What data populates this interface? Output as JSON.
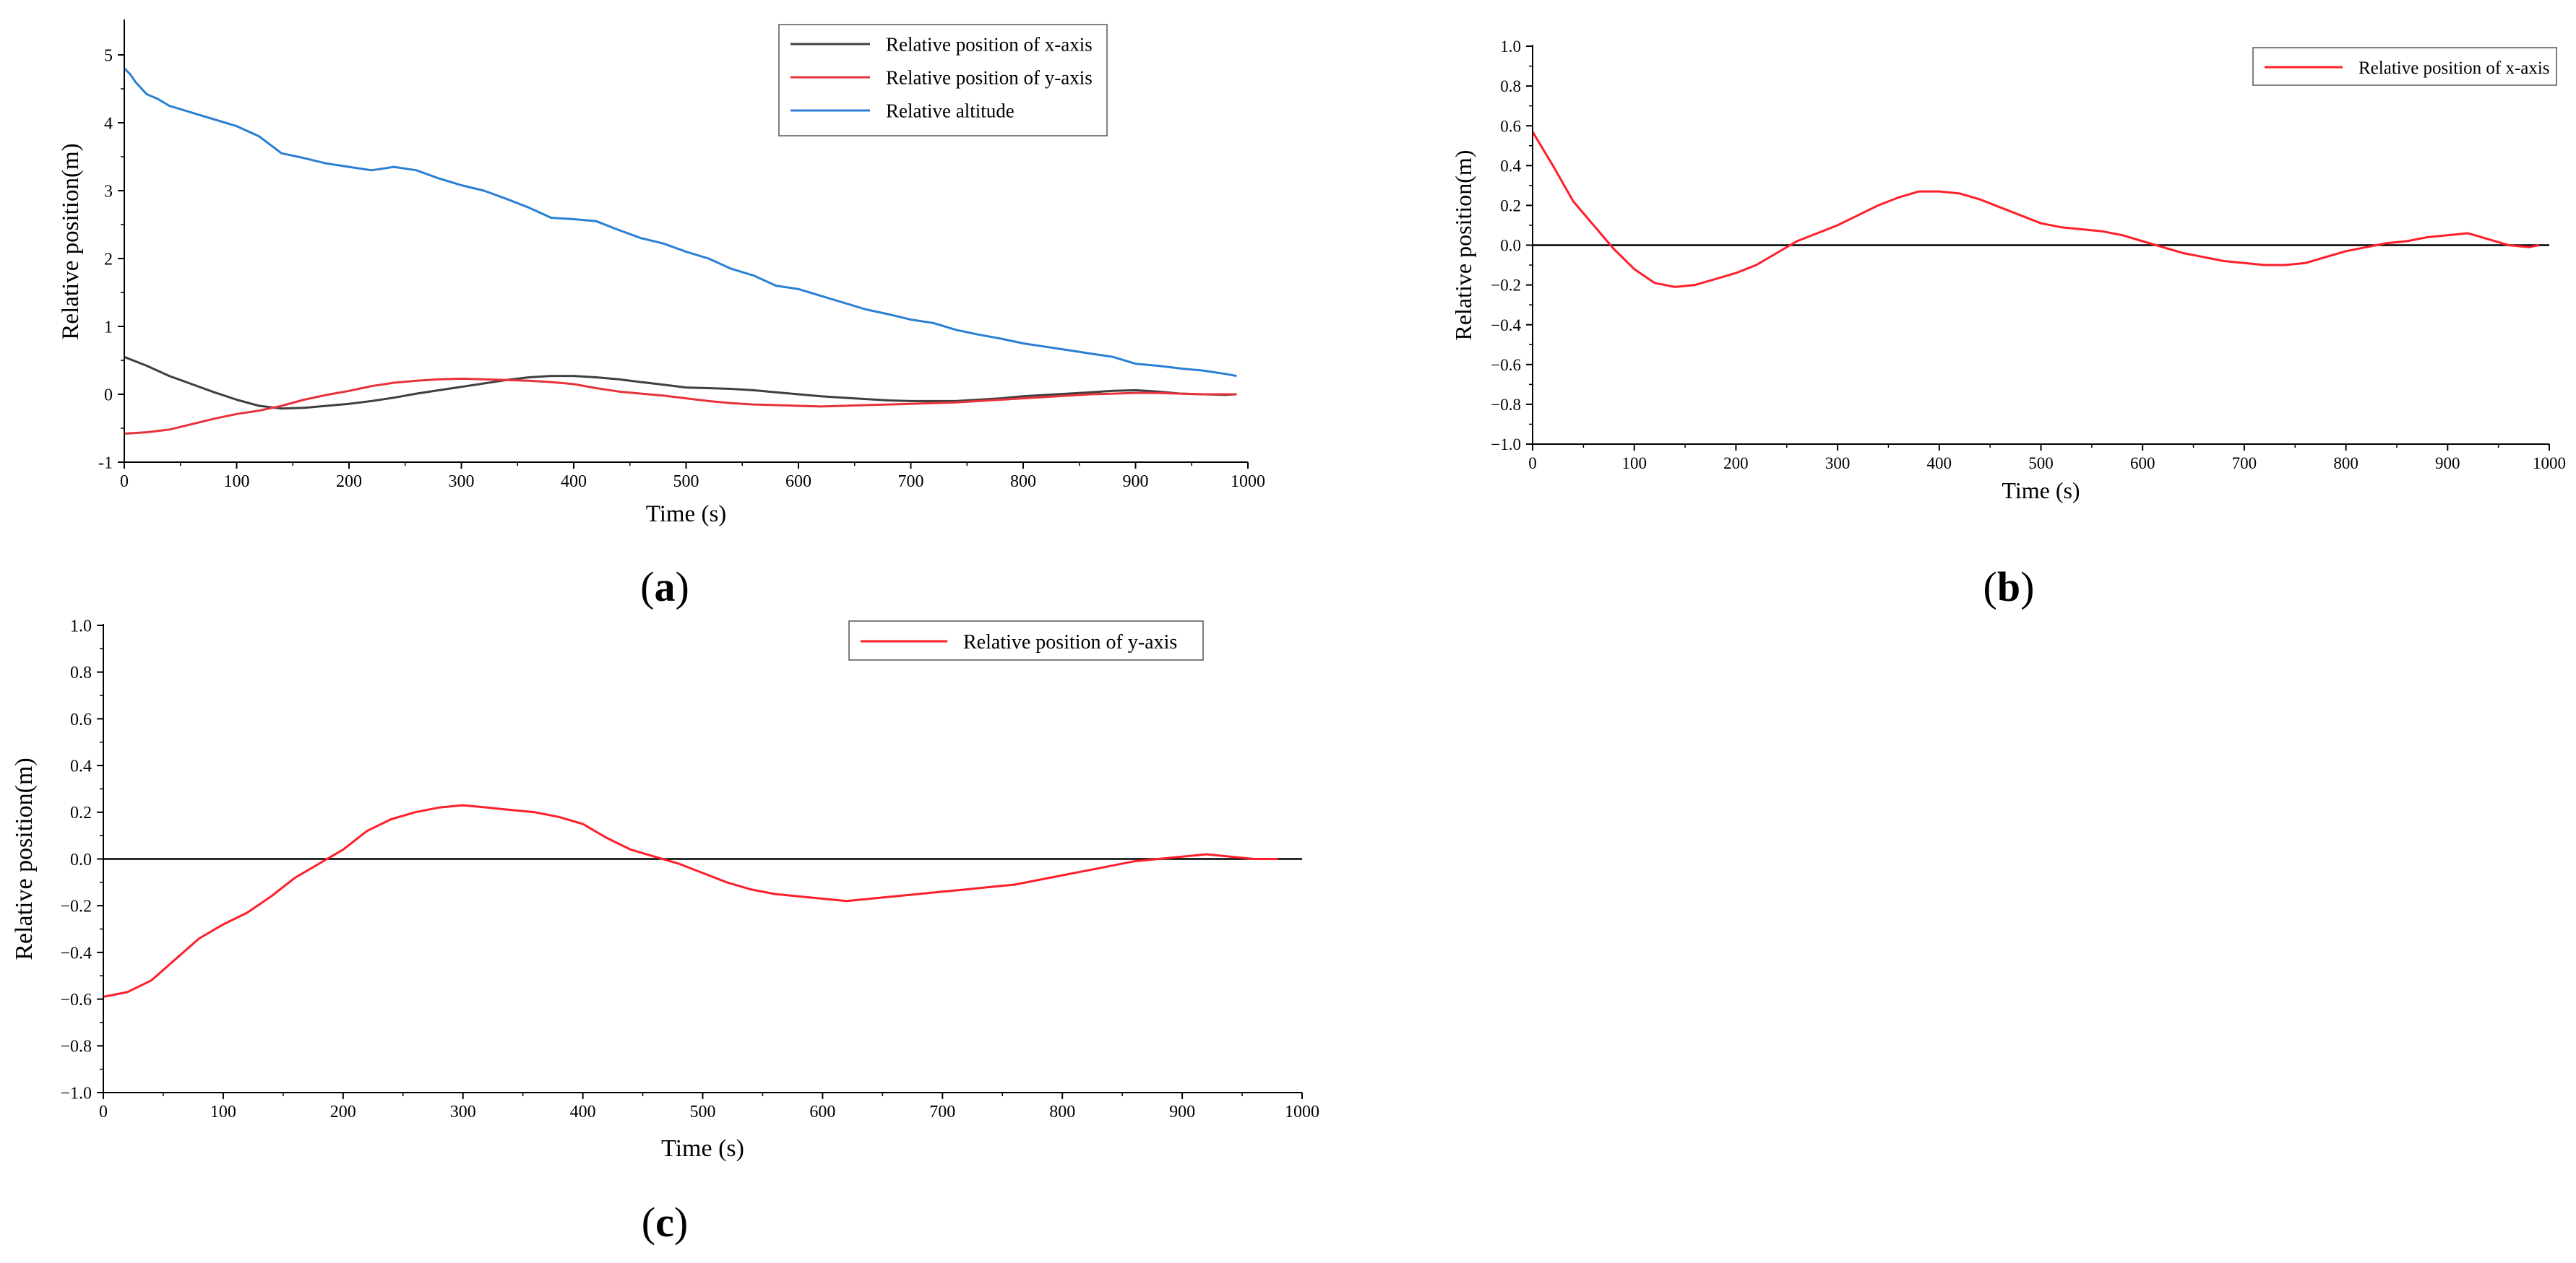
{
  "colors": {
    "x_axis_series": "#3f3f3f",
    "y_axis_series": "#e8323a",
    "altitude_series": "#2a7fd4",
    "panel_b_series": "#ff1f2a",
    "panel_c_series": "#ff1f2a",
    "zero_line": "#000000"
  },
  "chart_data": [
    {
      "id": "a",
      "panel_label": "a",
      "type": "line",
      "xlabel": "Time (s)",
      "ylabel": "Relative position(m)",
      "xlim": [
        0,
        1000
      ],
      "ylim": [
        -1,
        5.5
      ],
      "xticks": [
        0,
        100,
        200,
        300,
        400,
        500,
        600,
        700,
        800,
        900,
        1000
      ],
      "yticks": [
        -1,
        0,
        1,
        2,
        3,
        4,
        5
      ],
      "xtick_labels": [
        "0",
        "100",
        "200",
        "300",
        "400",
        "500",
        "600",
        "700",
        "800",
        "900",
        "1000"
      ],
      "ytick_labels": [
        "-1",
        "0",
        "1",
        "2",
        "3",
        "4",
        "5"
      ],
      "legend_position": "top-right",
      "series": [
        {
          "name": "Relative position of x-axis",
          "color_key": "x_axis_series",
          "x": [
            0,
            20,
            40,
            60,
            80,
            100,
            120,
            140,
            160,
            180,
            200,
            220,
            240,
            260,
            280,
            300,
            320,
            340,
            360,
            380,
            400,
            420,
            440,
            460,
            480,
            500,
            520,
            540,
            560,
            580,
            600,
            620,
            640,
            660,
            680,
            700,
            720,
            740,
            760,
            780,
            800,
            820,
            840,
            860,
            880,
            900,
            920,
            940,
            960,
            980,
            990
          ],
          "y": [
            0.55,
            0.42,
            0.27,
            0.15,
            0.03,
            -0.08,
            -0.17,
            -0.21,
            -0.2,
            -0.17,
            -0.14,
            -0.1,
            -0.05,
            0.01,
            0.06,
            0.11,
            0.16,
            0.21,
            0.25,
            0.27,
            0.27,
            0.25,
            0.22,
            0.18,
            0.14,
            0.1,
            0.09,
            0.08,
            0.06,
            0.03,
            0.0,
            -0.03,
            -0.05,
            -0.07,
            -0.09,
            -0.1,
            -0.1,
            -0.1,
            -0.08,
            -0.06,
            -0.03,
            -0.01,
            0.01,
            0.03,
            0.05,
            0.06,
            0.04,
            0.01,
            0.0,
            -0.01,
            0.0
          ]
        },
        {
          "name": "Relative position of y-axis",
          "color_key": "y_axis_series",
          "x": [
            0,
            20,
            40,
            60,
            80,
            100,
            120,
            140,
            160,
            180,
            200,
            220,
            240,
            260,
            280,
            300,
            320,
            340,
            360,
            380,
            400,
            420,
            440,
            460,
            480,
            500,
            520,
            540,
            560,
            580,
            600,
            620,
            640,
            660,
            680,
            700,
            720,
            740,
            760,
            780,
            800,
            820,
            840,
            860,
            880,
            900,
            920,
            940,
            960,
            980,
            990
          ],
          "y": [
            -0.58,
            -0.56,
            -0.52,
            -0.44,
            -0.36,
            -0.29,
            -0.24,
            -0.17,
            -0.08,
            -0.01,
            0.05,
            0.12,
            0.17,
            0.2,
            0.22,
            0.23,
            0.22,
            0.21,
            0.2,
            0.18,
            0.15,
            0.09,
            0.04,
            0.01,
            -0.02,
            -0.06,
            -0.1,
            -0.13,
            -0.15,
            -0.16,
            -0.17,
            -0.18,
            -0.17,
            -0.16,
            -0.15,
            -0.14,
            -0.13,
            -0.12,
            -0.1,
            -0.08,
            -0.06,
            -0.04,
            -0.02,
            0.0,
            0.01,
            0.02,
            0.02,
            0.01,
            0.0,
            0.0,
            0.0
          ]
        },
        {
          "name": "Relative altitude",
          "color_key": "altitude_series",
          "x": [
            0,
            5,
            10,
            20,
            30,
            40,
            50,
            60,
            80,
            100,
            120,
            140,
            160,
            180,
            200,
            220,
            240,
            260,
            280,
            300,
            320,
            340,
            360,
            380,
            400,
            420,
            440,
            460,
            480,
            500,
            520,
            540,
            560,
            580,
            600,
            620,
            640,
            660,
            680,
            700,
            720,
            740,
            760,
            780,
            800,
            820,
            840,
            860,
            880,
            900,
            920,
            940,
            960,
            980,
            990
          ],
          "y": [
            4.8,
            4.72,
            4.6,
            4.42,
            4.35,
            4.25,
            4.2,
            4.15,
            4.05,
            3.95,
            3.8,
            3.55,
            3.48,
            3.4,
            3.35,
            3.3,
            3.35,
            3.3,
            3.18,
            3.08,
            3.0,
            2.88,
            2.75,
            2.6,
            2.58,
            2.55,
            2.42,
            2.3,
            2.22,
            2.1,
            2.0,
            1.85,
            1.75,
            1.6,
            1.55,
            1.45,
            1.35,
            1.25,
            1.18,
            1.1,
            1.05,
            0.95,
            0.88,
            0.82,
            0.75,
            0.7,
            0.65,
            0.6,
            0.55,
            0.45,
            0.42,
            0.38,
            0.35,
            0.3,
            0.27
          ]
        }
      ]
    },
    {
      "id": "b",
      "panel_label": "b",
      "type": "line",
      "xlabel": "Time (s)",
      "ylabel": "Relative position(m)",
      "xlim": [
        0,
        1000
      ],
      "ylim": [
        -1.0,
        1.0
      ],
      "xticks": [
        0,
        100,
        200,
        300,
        400,
        500,
        600,
        700,
        800,
        900,
        1000
      ],
      "yticks": [
        -1.0,
        -0.8,
        -0.6,
        -0.4,
        -0.2,
        0.0,
        0.2,
        0.4,
        0.6,
        0.8,
        1.0
      ],
      "xtick_labels": [
        "0",
        "100",
        "200",
        "300",
        "400",
        "500",
        "600",
        "700",
        "800",
        "900",
        "1000"
      ],
      "ytick_labels": [
        "−1.0",
        "−0.8",
        "−0.6",
        "−0.4",
        "−0.2",
        "0.0",
        "0.2",
        "0.4",
        "0.6",
        "0.8",
        "1.0"
      ],
      "zero_line": true,
      "legend_position": "top-right",
      "series": [
        {
          "name": "Relative position of x-axis",
          "color_key": "panel_b_series",
          "x": [
            0,
            20,
            40,
            60,
            80,
            100,
            120,
            140,
            160,
            180,
            200,
            220,
            240,
            260,
            280,
            300,
            320,
            340,
            360,
            380,
            400,
            420,
            440,
            460,
            480,
            500,
            520,
            540,
            560,
            580,
            600,
            620,
            640,
            660,
            680,
            700,
            720,
            740,
            760,
            780,
            800,
            820,
            840,
            860,
            880,
            900,
            920,
            940,
            960,
            980,
            990
          ],
          "y": [
            0.57,
            0.4,
            0.22,
            0.1,
            -0.02,
            -0.12,
            -0.19,
            -0.21,
            -0.2,
            -0.17,
            -0.14,
            -0.1,
            -0.04,
            0.02,
            0.06,
            0.1,
            0.15,
            0.2,
            0.24,
            0.27,
            0.27,
            0.26,
            0.23,
            0.19,
            0.15,
            0.11,
            0.09,
            0.08,
            0.07,
            0.05,
            0.02,
            -0.01,
            -0.04,
            -0.06,
            -0.08,
            -0.09,
            -0.1,
            -0.1,
            -0.09,
            -0.06,
            -0.03,
            -0.01,
            0.01,
            0.02,
            0.04,
            0.05,
            0.06,
            0.03,
            0.0,
            -0.01,
            0.0
          ]
        }
      ]
    },
    {
      "id": "c",
      "panel_label": "c",
      "type": "line",
      "xlabel": "Time (s)",
      "ylabel": "Relative position(m)",
      "xlim": [
        0,
        1000
      ],
      "ylim": [
        -1.0,
        1.0
      ],
      "xticks": [
        0,
        100,
        200,
        300,
        400,
        500,
        600,
        700,
        800,
        900,
        1000
      ],
      "yticks": [
        -1.0,
        -0.8,
        -0.6,
        -0.4,
        -0.2,
        0.0,
        0.2,
        0.4,
        0.6,
        0.8,
        1.0
      ],
      "xtick_labels": [
        "0",
        "100",
        "200",
        "300",
        "400",
        "500",
        "600",
        "700",
        "800",
        "900",
        "1000"
      ],
      "ytick_labels": [
        "−1.0",
        "−0.8",
        "−0.6",
        "−0.4",
        "−0.2",
        "0.0",
        "0.2",
        "0.4",
        "0.6",
        "0.8",
        "1.0"
      ],
      "zero_line": true,
      "legend_position": "top-right",
      "series": [
        {
          "name": "Relative position of y-axis",
          "color_key": "panel_c_series",
          "x": [
            0,
            20,
            40,
            60,
            80,
            100,
            120,
            140,
            160,
            180,
            200,
            220,
            240,
            260,
            280,
            300,
            320,
            340,
            360,
            380,
            400,
            420,
            440,
            460,
            480,
            500,
            520,
            540,
            560,
            580,
            600,
            620,
            640,
            660,
            680,
            700,
            720,
            740,
            760,
            780,
            800,
            820,
            840,
            860,
            880,
            900,
            920,
            940,
            960,
            980
          ],
          "y": [
            -0.59,
            -0.57,
            -0.52,
            -0.43,
            -0.34,
            -0.28,
            -0.23,
            -0.16,
            -0.08,
            -0.02,
            0.04,
            0.12,
            0.17,
            0.2,
            0.22,
            0.23,
            0.22,
            0.21,
            0.2,
            0.18,
            0.15,
            0.09,
            0.04,
            0.01,
            -0.02,
            -0.06,
            -0.1,
            -0.13,
            -0.15,
            -0.16,
            -0.17,
            -0.18,
            -0.17,
            -0.16,
            -0.15,
            -0.14,
            -0.13,
            -0.12,
            -0.11,
            -0.09,
            -0.07,
            -0.05,
            -0.03,
            -0.01,
            0.0,
            0.01,
            0.02,
            0.01,
            0.0,
            0.0
          ]
        }
      ]
    }
  ]
}
